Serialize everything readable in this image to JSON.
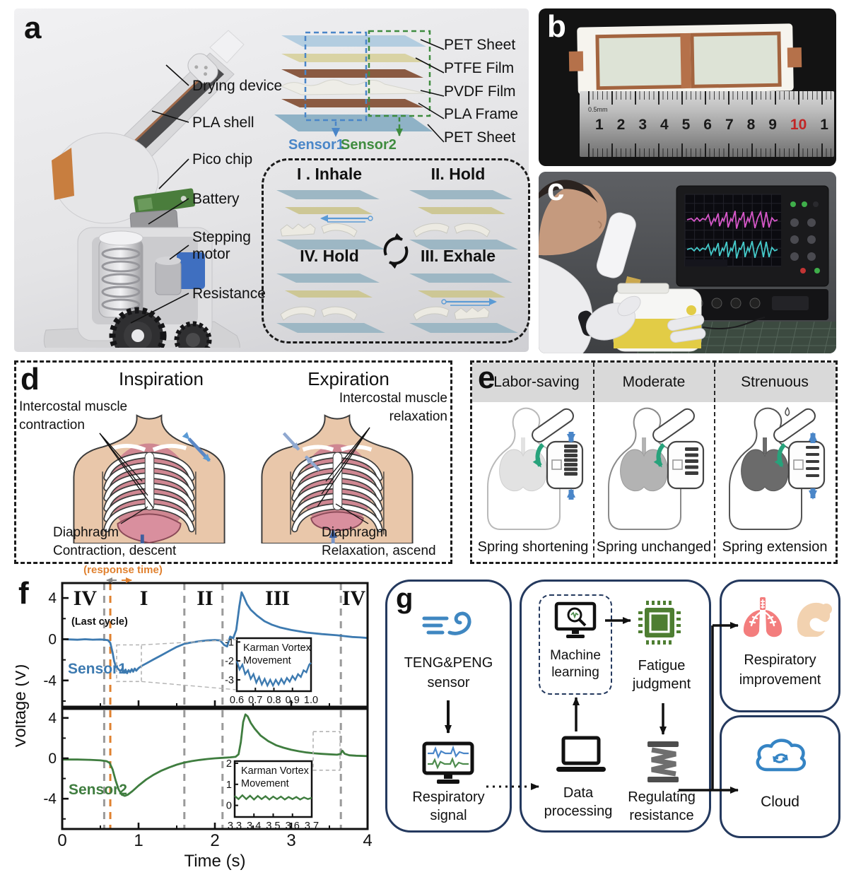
{
  "colors": {
    "sensor1_blue": "#3d7ab0",
    "sensor2_green": "#3f7d3f",
    "response_orange": "#e0812f",
    "flow_navy": "#24395e",
    "chip_green": "#4e7e32",
    "cloud_blue": "#3584c4",
    "wind_blue": "#3f87c1",
    "lungs_red": "#f37d7d",
    "muscle_peach": "#f2d2b0",
    "skin": "#e9c7aa",
    "rib_pink": "#cf8792",
    "copper": "#b5714a",
    "pet_blue": "#9db7c4",
    "ptfe_khaki": "#cdc795",
    "pla_brown": "#8a5a42"
  },
  "panels": {
    "a": {
      "letter": "a",
      "device_labels": [
        "Drying device",
        "PLA shell",
        "Pico chip",
        "Battery",
        "Stepping motor",
        "Resistance"
      ],
      "layer_labels": [
        "PET Sheet",
        "PTFE Film",
        "PVDF Film",
        "PLA Frame",
        "PET Sheet"
      ],
      "sensor1_label": "Sensor1",
      "sensor2_label": "Sensor2",
      "cycle_labels": [
        "I . Inhale",
        "II. Hold",
        "IV. Hold",
        "III. Exhale"
      ]
    },
    "b": {
      "letter": "b",
      "ruler_numbers": [
        "1",
        "2",
        "3",
        "4",
        "5",
        "6",
        "7",
        "8",
        "9",
        "10",
        "1"
      ],
      "ruler_scale_label": "0.5mm"
    },
    "c": {
      "letter": "c"
    },
    "d": {
      "letter": "d",
      "title_left": "Inspiration",
      "title_right": "Expiration",
      "label_intercostal_left": [
        "Intercostal muscle",
        "contraction"
      ],
      "label_intercostal_right": [
        "Intercostal muscle",
        "relaxation"
      ],
      "label_diaphragm_left": [
        "Diaphragm",
        "Contraction, descent"
      ],
      "label_diaphragm_right": [
        "Diaphragm",
        "Relaxation, ascend"
      ]
    },
    "e": {
      "letter": "e",
      "headers": [
        "Labor-saving",
        "Moderate",
        "Strenuous"
      ],
      "footers": [
        "Spring shortening",
        "Spring unchanged",
        "Spring extension"
      ]
    },
    "f": {
      "letter": "f"
    },
    "g": {
      "letter": "g",
      "nodes": {
        "sensor": [
          "TENG&PENG",
          "sensor"
        ],
        "respiratory_signal": [
          "Respiratory",
          "signal"
        ],
        "machine_learning": [
          "Machine",
          "learning"
        ],
        "fatigue_judgment": [
          "Fatigue",
          "judgment"
        ],
        "data_processing": [
          "Data",
          "processing"
        ],
        "regulating_resistance": [
          "Regulating",
          "resistance"
        ],
        "respiratory_improvement": [
          "Respiratory",
          "improvement"
        ],
        "cloud": [
          "Cloud"
        ]
      }
    }
  },
  "chart_data": {
    "type": "line",
    "xlabel": "Time (s)",
    "ylabel": "Voltage (V)",
    "xlim": [
      0,
      4
    ],
    "x_ticks": [
      0,
      1,
      2,
      3,
      4
    ],
    "x_minor_step": 0.5,
    "grid": false,
    "annotations": {
      "response_time": "(response time)",
      "last_cycle": "(Last cycle)"
    },
    "phase_labels": [
      {
        "text": "IV",
        "x": 0.3
      },
      {
        "text": "I",
        "x": 1.07
      },
      {
        "text": "II",
        "x": 1.87
      },
      {
        "text": "III",
        "x": 2.82
      },
      {
        "text": "IV",
        "x": 3.82
      }
    ],
    "vlines": [
      {
        "x": 0.55,
        "color": "#9a9a9a"
      },
      {
        "x": 0.63,
        "color": "#e0812f"
      },
      {
        "x": 1.6,
        "color": "#9a9a9a"
      },
      {
        "x": 2.1,
        "color": "#9a9a9a"
      },
      {
        "x": 3.65,
        "color": "#9a9a9a"
      }
    ],
    "series": [
      {
        "name": "Sensor1",
        "color": "#3d7ab0",
        "ylim": [
          -6.55,
          5.45
        ],
        "yticks": [
          4,
          0,
          -4
        ],
        "yticks_minor": [
          2,
          -2,
          -6
        ],
        "points": [
          [
            0,
            0
          ],
          [
            0.1,
            -0.02
          ],
          [
            0.2,
            -0.05
          ],
          [
            0.3,
            0
          ],
          [
            0.4,
            -0.04
          ],
          [
            0.5,
            -0.02
          ],
          [
            0.55,
            -0.05
          ],
          [
            0.6,
            -0.1
          ],
          [
            0.63,
            -0.35
          ],
          [
            0.66,
            -1.3
          ],
          [
            0.68,
            -2.1
          ],
          [
            0.7,
            -2.6
          ],
          [
            0.73,
            -2.85
          ],
          [
            0.76,
            -3.1
          ],
          [
            0.79,
            -2.85
          ],
          [
            0.81,
            -3.25
          ],
          [
            0.83,
            -2.95
          ],
          [
            0.85,
            -3.3
          ],
          [
            0.87,
            -3.0
          ],
          [
            0.89,
            -3.2
          ],
          [
            0.91,
            -2.9
          ],
          [
            0.93,
            -3.15
          ],
          [
            0.95,
            -2.85
          ],
          [
            0.97,
            -3.05
          ],
          [
            1.0,
            -2.8
          ],
          [
            1.05,
            -2.55
          ],
          [
            1.1,
            -2.35
          ],
          [
            1.2,
            -1.95
          ],
          [
            1.3,
            -1.55
          ],
          [
            1.4,
            -1.15
          ],
          [
            1.5,
            -0.75
          ],
          [
            1.6,
            -0.45
          ],
          [
            1.7,
            -0.3
          ],
          [
            1.8,
            -0.2
          ],
          [
            1.9,
            -0.12
          ],
          [
            2.0,
            -0.08
          ],
          [
            2.07,
            -0.12
          ],
          [
            2.12,
            -0.55
          ],
          [
            2.16,
            -0.7
          ],
          [
            2.2,
            0.25
          ],
          [
            2.24,
            0.1
          ],
          [
            2.28,
            0.9
          ],
          [
            2.32,
            3.2
          ],
          [
            2.35,
            4.55
          ],
          [
            2.38,
            4.1
          ],
          [
            2.42,
            3.4
          ],
          [
            2.47,
            2.85
          ],
          [
            2.55,
            2.3
          ],
          [
            2.65,
            1.75
          ],
          [
            2.75,
            1.4
          ],
          [
            2.85,
            1.15
          ],
          [
            3.0,
            0.9
          ],
          [
            3.2,
            0.65
          ],
          [
            3.4,
            0.5
          ],
          [
            3.6,
            0.38
          ],
          [
            3.7,
            0.3
          ],
          [
            3.8,
            0.22
          ],
          [
            3.9,
            0.18
          ],
          [
            4,
            0.12
          ]
        ],
        "zoom_box": {
          "x1": 0.713,
          "x2": 1.037,
          "y1": -4.1,
          "y2": -0.55
        },
        "inset": {
          "title": [
            "Karman Vortex",
            "Movement"
          ],
          "xlim": [
            0.6,
            1.0
          ],
          "ylim": [
            -3.6,
            -0.8
          ],
          "xticks": [
            0.6,
            0.7,
            0.8,
            0.9,
            1.0
          ],
          "yticks": [
            -1,
            -2,
            -3
          ],
          "points": [
            [
              0.6,
              -2.0
            ],
            [
              0.615,
              -2.45
            ],
            [
              0.63,
              -2.2
            ],
            [
              0.645,
              -2.7
            ],
            [
              0.66,
              -2.5
            ],
            [
              0.675,
              -2.95
            ],
            [
              0.69,
              -2.7
            ],
            [
              0.705,
              -3.15
            ],
            [
              0.72,
              -2.85
            ],
            [
              0.735,
              -3.25
            ],
            [
              0.75,
              -2.95
            ],
            [
              0.765,
              -3.3
            ],
            [
              0.78,
              -3.0
            ],
            [
              0.795,
              -3.3
            ],
            [
              0.81,
              -3.0
            ],
            [
              0.825,
              -3.25
            ],
            [
              0.84,
              -2.95
            ],
            [
              0.855,
              -3.2
            ],
            [
              0.87,
              -2.9
            ],
            [
              0.885,
              -3.1
            ],
            [
              0.9,
              -2.8
            ],
            [
              0.915,
              -3.0
            ],
            [
              0.93,
              -2.7
            ],
            [
              0.945,
              -2.85
            ],
            [
              0.96,
              -2.5
            ],
            [
              0.975,
              -2.6
            ],
            [
              0.99,
              -2.2
            ],
            [
              1.0,
              -2.1
            ]
          ]
        }
      },
      {
        "name": "Sensor2",
        "color": "#3f7d3f",
        "ylim": [
          -7.0,
          4.9
        ],
        "yticks": [
          4,
          0,
          -4
        ],
        "yticks_minor": [
          2,
          -2,
          -6
        ],
        "points": [
          [
            0,
            -0.12
          ],
          [
            0.2,
            -0.12
          ],
          [
            0.35,
            -0.15
          ],
          [
            0.5,
            -0.2
          ],
          [
            0.58,
            -0.28
          ],
          [
            0.62,
            -0.45
          ],
          [
            0.66,
            -1.1
          ],
          [
            0.7,
            -2.2
          ],
          [
            0.74,
            -3.1
          ],
          [
            0.78,
            -3.6
          ],
          [
            0.82,
            -3.72
          ],
          [
            0.86,
            -3.6
          ],
          [
            0.92,
            -3.25
          ],
          [
            1.0,
            -2.7
          ],
          [
            1.1,
            -2.1
          ],
          [
            1.2,
            -1.62
          ],
          [
            1.3,
            -1.22
          ],
          [
            1.4,
            -0.9
          ],
          [
            1.5,
            -0.63
          ],
          [
            1.6,
            -0.42
          ],
          [
            1.7,
            -0.27
          ],
          [
            1.8,
            -0.16
          ],
          [
            1.9,
            -0.07
          ],
          [
            2.0,
            0
          ],
          [
            2.1,
            0.05
          ],
          [
            2.2,
            0.1
          ],
          [
            2.27,
            0.15
          ],
          [
            2.31,
            0.4
          ],
          [
            2.34,
            1.6
          ],
          [
            2.37,
            3.6
          ],
          [
            2.4,
            4.35
          ],
          [
            2.43,
            4.15
          ],
          [
            2.47,
            3.5
          ],
          [
            2.52,
            2.95
          ],
          [
            2.6,
            2.25
          ],
          [
            2.7,
            1.7
          ],
          [
            2.8,
            1.3
          ],
          [
            2.9,
            1.05
          ],
          [
            3.0,
            0.85
          ],
          [
            3.1,
            0.7
          ],
          [
            3.2,
            0.58
          ],
          [
            3.3,
            0.5
          ],
          [
            3.4,
            0.44
          ],
          [
            3.5,
            0.4
          ],
          [
            3.6,
            0.36
          ],
          [
            3.64,
            0.42
          ],
          [
            3.67,
            0.75
          ],
          [
            3.7,
            0.45
          ],
          [
            3.76,
            0.3
          ],
          [
            3.85,
            0.26
          ],
          [
            4,
            0.22
          ]
        ],
        "zoom_box": {
          "x1": 3.287,
          "x2": 3.639,
          "y1": -1.18,
          "y2": 2.65
        },
        "inset": {
          "title": [
            "Karman Vortex",
            "Movement"
          ],
          "xlim": [
            3.3,
            3.7
          ],
          "ylim": [
            -0.55,
            2.1
          ],
          "xticks": [
            3.3,
            3.4,
            3.5,
            3.6,
            3.7
          ],
          "yticks": [
            2,
            1,
            0
          ],
          "points": [
            [
              3.3,
              0.45
            ],
            [
              3.32,
              0.3
            ],
            [
              3.34,
              0.48
            ],
            [
              3.36,
              0.3
            ],
            [
              3.38,
              0.46
            ],
            [
              3.4,
              0.28
            ],
            [
              3.42,
              0.45
            ],
            [
              3.44,
              0.3
            ],
            [
              3.46,
              0.44
            ],
            [
              3.48,
              0.28
            ],
            [
              3.5,
              0.42
            ],
            [
              3.52,
              0.3
            ],
            [
              3.54,
              0.42
            ],
            [
              3.56,
              0.28
            ],
            [
              3.58,
              0.4
            ],
            [
              3.6,
              0.3
            ],
            [
              3.62,
              0.4
            ],
            [
              3.64,
              0.28
            ],
            [
              3.66,
              0.38
            ],
            [
              3.68,
              0.3
            ],
            [
              3.7,
              0.36
            ]
          ]
        }
      }
    ]
  }
}
